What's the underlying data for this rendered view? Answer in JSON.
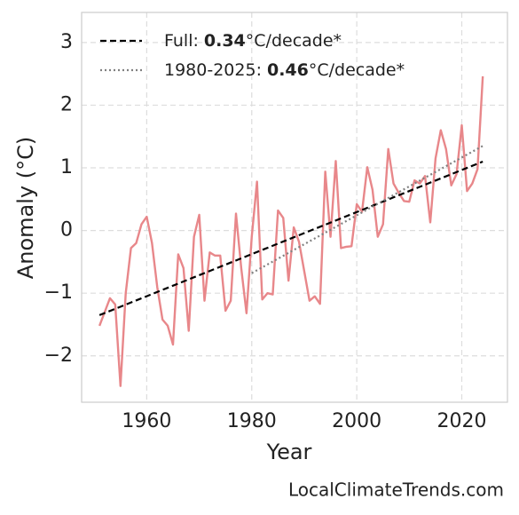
{
  "chart_data": {
    "type": "line",
    "xlabel": "Year",
    "ylabel": "Anomaly (°C)",
    "watermark": "LocalClimateTrends.com",
    "x": [
      1951,
      1952,
      1953,
      1954,
      1955,
      1956,
      1957,
      1958,
      1959,
      1960,
      1961,
      1962,
      1963,
      1964,
      1965,
      1966,
      1967,
      1968,
      1969,
      1970,
      1971,
      1972,
      1973,
      1974,
      1975,
      1976,
      1977,
      1978,
      1979,
      1980,
      1981,
      1982,
      1983,
      1984,
      1985,
      1986,
      1987,
      1988,
      1989,
      1990,
      1991,
      1992,
      1993,
      1994,
      1995,
      1996,
      1997,
      1998,
      1999,
      2000,
      2001,
      2002,
      2003,
      2004,
      2005,
      2006,
      2007,
      2008,
      2009,
      2010,
      2011,
      2012,
      2013,
      2014,
      2015,
      2016,
      2017,
      2018,
      2019,
      2020,
      2021,
      2022,
      2023,
      2024
    ],
    "series": [
      {
        "color": "#e8878a",
        "style": "solid",
        "values": [
          -1.52,
          -1.3,
          -1.08,
          -1.18,
          -2.48,
          -1.0,
          -0.28,
          -0.2,
          0.1,
          0.22,
          -0.2,
          -0.9,
          -1.42,
          -1.52,
          -1.82,
          -0.38,
          -0.6,
          -1.6,
          -0.1,
          0.25,
          -1.12,
          -0.35,
          -0.4,
          -0.4,
          -1.28,
          -1.12,
          0.27,
          -0.6,
          -1.32,
          -0.1,
          0.78,
          -1.1,
          -1.0,
          -1.02,
          0.32,
          0.2,
          -0.8,
          0.05,
          -0.18,
          -0.65,
          -1.12,
          -1.05,
          -1.17,
          0.94,
          -0.1,
          1.11,
          -0.28,
          -0.26,
          -0.25,
          0.42,
          0.3,
          1.01,
          0.65,
          -0.1,
          0.1,
          1.3,
          0.75,
          0.6,
          0.47,
          0.46,
          0.8,
          0.75,
          0.87,
          0.13,
          1.15,
          1.6,
          1.3,
          0.72,
          0.9,
          1.68,
          0.63,
          0.75,
          0.98,
          2.46
        ]
      },
      {
        "name": "Full:",
        "rate": 0.34,
        "unit": "°C/decade*",
        "color": "#000000",
        "style": "dashed",
        "x": [
          1951,
          2024
        ],
        "values": [
          -1.35,
          1.1
        ]
      },
      {
        "name": "1980-2025:",
        "rate": 0.46,
        "unit": "°C/decade*",
        "color": "#808080",
        "style": "dotted",
        "x": [
          1980,
          2024
        ],
        "values": [
          -0.68,
          1.35
        ]
      }
    ],
    "xlim": [
      1947.6,
      2028.7
    ],
    "ylim": [
      -2.74,
      3.48
    ],
    "xticks": [
      1960,
      1980,
      2000,
      2020
    ],
    "yticks": [
      {
        "value": -2,
        "label": "−2"
      },
      {
        "value": -1,
        "label": "−1"
      },
      0,
      1,
      2,
      3
    ],
    "grid": true,
    "legend": "upper left"
  }
}
